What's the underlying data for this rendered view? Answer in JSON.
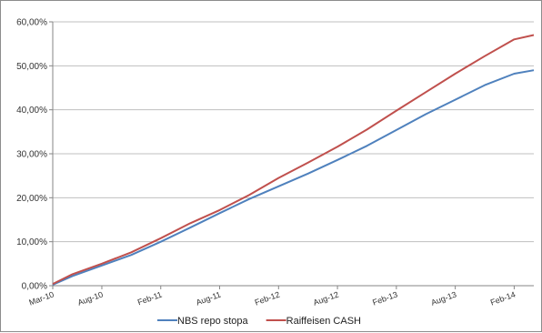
{
  "chart_data": {
    "type": "line",
    "title": "",
    "xlabel": "",
    "ylabel": "",
    "x_tick_labels": [
      "Mar-10",
      "Aug-10",
      "Feb-11",
      "Aug-11",
      "Feb-12",
      "Aug-12",
      "Feb-13",
      "Aug-13",
      "Feb-14"
    ],
    "y_tick_labels": [
      "0,00%",
      "10,00%",
      "20,00%",
      "30,00%",
      "40,00%",
      "50,00%",
      "60,00%"
    ],
    "ylim": [
      0,
      60
    ],
    "xlim": [
      "2010-03",
      "2014-04"
    ],
    "grid": {
      "horizontal": true,
      "vertical": false
    },
    "legend_position": "bottom",
    "series": [
      {
        "name": "NBS repo stopa",
        "color": "#4f81bd",
        "x": [
          "2010-03",
          "2010-05",
          "2010-08",
          "2010-11",
          "2011-02",
          "2011-05",
          "2011-08",
          "2011-11",
          "2012-02",
          "2012-05",
          "2012-08",
          "2012-11",
          "2013-02",
          "2013-05",
          "2013-08",
          "2013-11",
          "2014-02",
          "2014-04"
        ],
        "values": [
          0.2,
          2.2,
          4.6,
          7.0,
          10.0,
          13.2,
          16.5,
          19.7,
          22.6,
          25.5,
          28.6,
          31.8,
          35.4,
          39.0,
          42.3,
          45.6,
          48.2,
          49.0
        ]
      },
      {
        "name": "Raiffeisen CASH",
        "color": "#c0504d",
        "x": [
          "2010-03",
          "2010-05",
          "2010-08",
          "2010-11",
          "2011-02",
          "2011-05",
          "2011-08",
          "2011-11",
          "2012-02",
          "2012-05",
          "2012-08",
          "2012-11",
          "2013-02",
          "2013-05",
          "2013-08",
          "2013-11",
          "2014-02",
          "2014-04"
        ],
        "values": [
          0.4,
          2.6,
          5.0,
          7.6,
          10.8,
          14.2,
          17.2,
          20.6,
          24.5,
          28.0,
          31.6,
          35.5,
          39.8,
          44.0,
          48.2,
          52.2,
          56.0,
          57.0
        ]
      }
    ]
  }
}
